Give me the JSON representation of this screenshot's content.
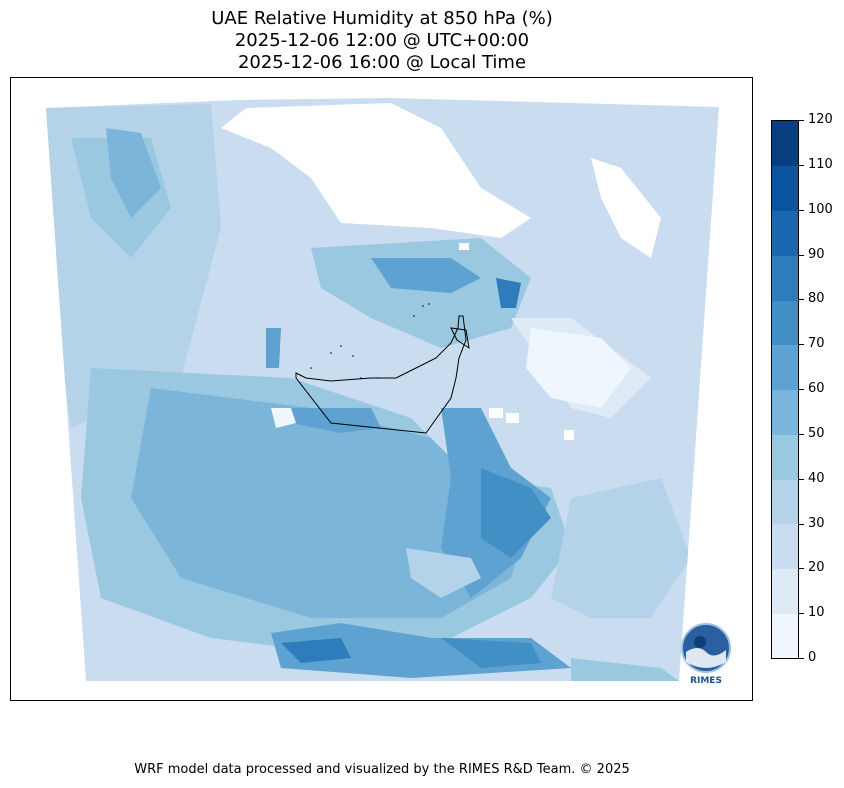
{
  "title": {
    "line1": "UAE Relative Humidity at 850 hPa (%)",
    "line2": "2025-12-06 12:00 @ UTC+00:00",
    "line3": "2025-12-06 16:00 @ Local Time"
  },
  "colorbar": {
    "ticks": [
      "0",
      "10",
      "20",
      "30",
      "40",
      "50",
      "60",
      "70",
      "80",
      "90",
      "100",
      "110",
      "120"
    ],
    "colors": [
      "#f0f6fd",
      "#deebf7",
      "#cadcef",
      "#b5d3e8",
      "#9ac8e0",
      "#7bb5da",
      "#5da2d0",
      "#428fc5",
      "#2e7cbc",
      "#1a67b0",
      "#0a539f",
      "#083d7f"
    ]
  },
  "logo": {
    "text": "RIMES"
  },
  "footer": "WRF model data processed and visualized by the RIMES R&D Team. © 2025"
}
